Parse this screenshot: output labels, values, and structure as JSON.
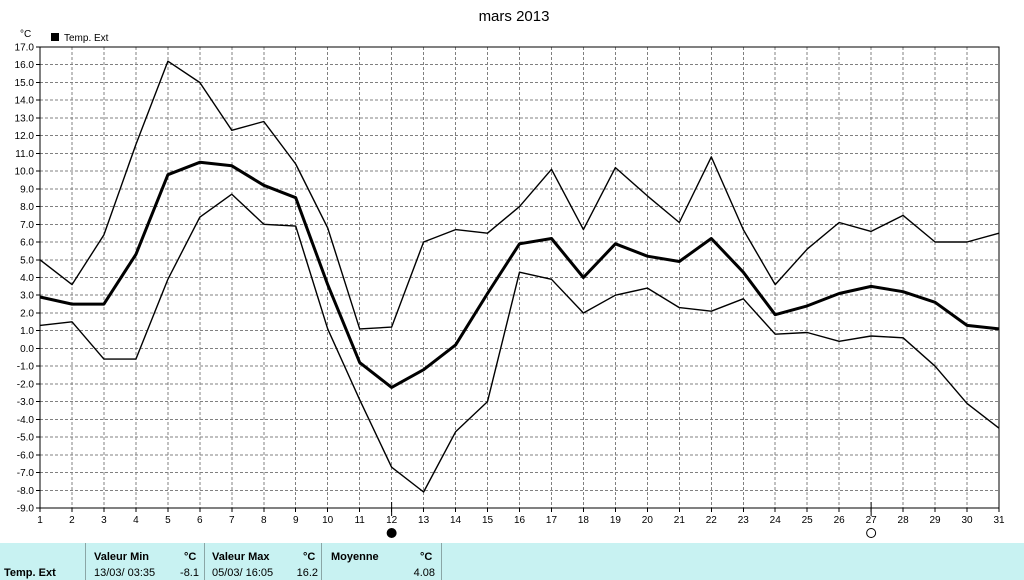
{
  "chart_data": {
    "type": "line",
    "title": "mars 2013",
    "unit": "°C",
    "legend": "Temp. Ext",
    "ylim": [
      -9,
      17
    ],
    "yticks": [
      "-9.0",
      "-8.0",
      "-7.0",
      "-6.0",
      "-5.0",
      "-4.0",
      "-3.0",
      "-2.0",
      "-1.0",
      "0.0",
      "1.0",
      "2.0",
      "3.0",
      "4.0",
      "5.0",
      "6.0",
      "7.0",
      "8.0",
      "9.0",
      "10.0",
      "11.0",
      "12.0",
      "13.0",
      "14.0",
      "15.0",
      "16.0",
      "17.0"
    ],
    "x": [
      1,
      2,
      3,
      4,
      5,
      6,
      7,
      8,
      9,
      10,
      11,
      12,
      13,
      14,
      15,
      16,
      17,
      18,
      19,
      20,
      21,
      22,
      23,
      24,
      25,
      26,
      27,
      28,
      29,
      30,
      31
    ],
    "series": [
      {
        "values": [
          5.0,
          3.6,
          6.4,
          11.5,
          16.2,
          15.0,
          12.3,
          12.8,
          10.4,
          6.8,
          1.1,
          1.2,
          6.0,
          6.7,
          6.5,
          8.0,
          10.1,
          6.7,
          10.2,
          8.6,
          7.1,
          10.8,
          6.7,
          3.6,
          5.6,
          7.1,
          6.6,
          7.5,
          6.0,
          6.0,
          6.5
        ]
      },
      {
        "values": [
          2.9,
          2.5,
          2.5,
          5.3,
          9.8,
          10.5,
          10.3,
          9.2,
          8.5,
          3.6,
          -0.8,
          -2.2,
          -1.2,
          0.2,
          3.1,
          5.9,
          6.2,
          4.0,
          5.9,
          5.2,
          4.9,
          6.2,
          4.3,
          1.9,
          2.4,
          3.1,
          3.5,
          3.2,
          2.6,
          1.3,
          1.1
        ]
      },
      {
        "values": [
          1.3,
          1.5,
          -0.6,
          -0.6,
          3.9,
          7.4,
          8.7,
          7.0,
          6.9,
          1.1,
          -2.9,
          -6.7,
          -8.1,
          -4.7,
          -3.0,
          4.3,
          3.9,
          2.0,
          3.0,
          3.4,
          2.3,
          2.1,
          2.8,
          0.8,
          0.9,
          0.4,
          0.7,
          0.6,
          -1.0,
          -3.1,
          -4.5
        ]
      }
    ],
    "moon_markers": [
      {
        "day": 12,
        "phase": "new-moon"
      },
      {
        "day": 27,
        "phase": "full-moon"
      }
    ],
    "grid": true
  },
  "stats": {
    "row_label": "Temp. Ext",
    "min": {
      "header": "Valeur Min",
      "unit": "°C",
      "datetime": "13/03/  03:35",
      "value": "-8.1"
    },
    "max": {
      "header": "Valeur Max",
      "unit": "°C",
      "datetime": "05/03/  16:05",
      "value": "16.2"
    },
    "avg": {
      "header": "Moyenne",
      "unit": "°C",
      "value": "4.08"
    }
  },
  "colors": {
    "background": "#ffffff",
    "grid": "#808080",
    "line": "#000000",
    "stats_bg": "#c8f2f2"
  }
}
